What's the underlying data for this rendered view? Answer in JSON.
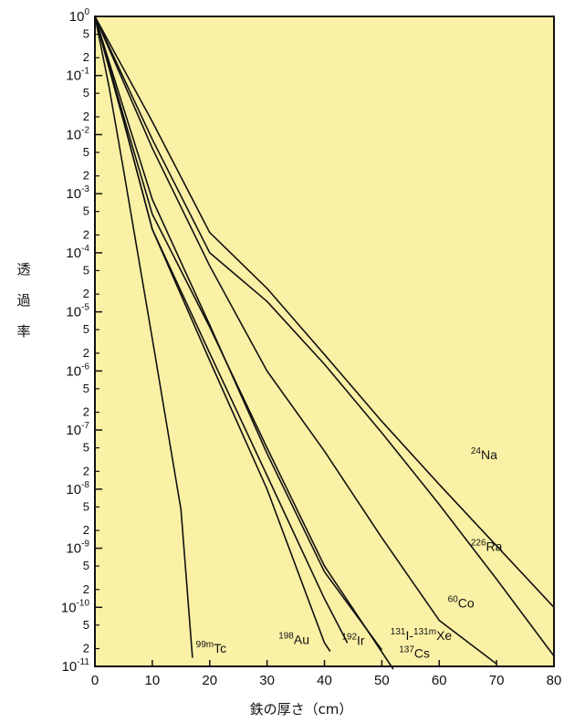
{
  "chart_data": {
    "type": "line",
    "xlabel": "鉄の厚さ（cm）",
    "ylabel": "透過率",
    "xlim": [
      0,
      80
    ],
    "ylim": [
      1e-11,
      1
    ],
    "yscale": "log",
    "background_color": "#FBF1A6",
    "line_color": "#111111",
    "x_ticks": [
      "0",
      "10",
      "20",
      "30",
      "40",
      "50",
      "60",
      "70",
      "80"
    ],
    "y_major_ticks": [
      {
        "base": "10",
        "exp": "0"
      },
      {
        "base": "10",
        "exp": "-1"
      },
      {
        "base": "10",
        "exp": "-2"
      },
      {
        "base": "10",
        "exp": "-3"
      },
      {
        "base": "10",
        "exp": "-4"
      },
      {
        "base": "10",
        "exp": "-5"
      },
      {
        "base": "10",
        "exp": "-6"
      },
      {
        "base": "10",
        "exp": "-7"
      },
      {
        "base": "10",
        "exp": "-8"
      },
      {
        "base": "10",
        "exp": "-9"
      },
      {
        "base": "10",
        "exp": "-10"
      },
      {
        "base": "10",
        "exp": "-11"
      }
    ],
    "y_minor_labels": [
      "5",
      "2"
    ],
    "series": [
      {
        "name": "²⁴Na",
        "mass": "24",
        "symbol": "Na",
        "points": [
          [
            0,
            1
          ],
          [
            10,
            0.0166
          ],
          [
            20,
            0.00022
          ],
          [
            30,
            2.5e-05
          ],
          [
            40,
            1.9e-06
          ],
          [
            50,
            1.4e-07
          ],
          [
            60,
            1.2e-08
          ],
          [
            70,
            1.1e-09
          ],
          [
            80,
            1e-10
          ]
        ]
      },
      {
        "name": "²²⁶Ra",
        "mass": "226",
        "symbol": "Ra",
        "points": [
          [
            0,
            1
          ],
          [
            10,
            0.0083
          ],
          [
            20,
            0.0001
          ],
          [
            30,
            1.5e-05
          ],
          [
            40,
            1.3e-06
          ],
          [
            50,
            9e-08
          ],
          [
            60,
            5.5e-09
          ],
          [
            70,
            3e-10
          ],
          [
            80,
            1.5e-11
          ]
        ]
      },
      {
        "name": "⁶⁰Co",
        "mass": "60",
        "symbol": "Co",
        "points": [
          [
            0,
            1
          ],
          [
            10,
            0.0059
          ],
          [
            20,
            6e-05
          ],
          [
            30,
            1e-06
          ],
          [
            40,
            4.4e-08
          ],
          [
            50,
            1.5e-09
          ],
          [
            60,
            6e-11
          ],
          [
            70,
            1.1e-11
          ]
        ]
      },
      {
        "name": "¹³¹I-¹³¹ᵐXe",
        "mass": "131",
        "symbol": "I-",
        "mass2": "131m",
        "symbol2": "Xe",
        "points": [
          [
            0,
            1
          ],
          [
            5,
            0.028
          ],
          [
            10,
            0.0008
          ],
          [
            20,
            6e-06
          ],
          [
            30,
            4e-08
          ],
          [
            40,
            4e-10
          ],
          [
            50,
            1.9e-11
          ]
        ]
      },
      {
        "name": "¹³⁷Cs",
        "mass": "137",
        "symbol": "Cs",
        "points": [
          [
            0,
            1
          ],
          [
            5,
            0.0205
          ],
          [
            10,
            0.00045
          ],
          [
            20,
            5.5e-06
          ],
          [
            30,
            5e-08
          ],
          [
            40,
            5e-10
          ],
          [
            52,
            9e-12
          ]
        ]
      },
      {
        "name": "¹⁹²Ir",
        "mass": "192",
        "symbol": "Ir",
        "points": [
          [
            0,
            1
          ],
          [
            5,
            0.017
          ],
          [
            10,
            0.00025
          ],
          [
            20,
            2e-06
          ],
          [
            30,
            1.7e-08
          ],
          [
            40,
            1.4e-10
          ],
          [
            44,
            2.5e-11
          ]
        ]
      },
      {
        "name": "¹⁹⁸Au",
        "mass": "198",
        "symbol": "Au",
        "points": [
          [
            0,
            1
          ],
          [
            5,
            0.017
          ],
          [
            10,
            0.00025
          ],
          [
            20,
            1.5e-06
          ],
          [
            30,
            1e-08
          ],
          [
            40,
            2.5e-11
          ],
          [
            41,
            1.8e-11
          ]
        ]
      },
      {
        "name": "⁹⁹ᵐTc",
        "mass": "99m",
        "symbol": "Tc",
        "points": [
          [
            0,
            1
          ],
          [
            2.5,
            0.062
          ],
          [
            5,
            0.0025
          ],
          [
            10,
            3.5e-06
          ],
          [
            15,
            4.5e-09
          ],
          [
            17,
            1.4e-11
          ]
        ]
      }
    ]
  }
}
